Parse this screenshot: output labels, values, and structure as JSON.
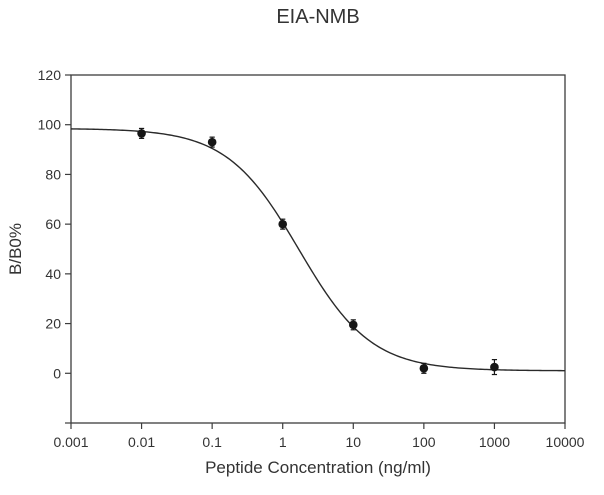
{
  "figure": {
    "background": "#ffffff",
    "text_color": "#333333",
    "axis_color": "#3c3c3c",
    "curve_color": "#2a2a2a",
    "marker_color": "#161616"
  },
  "chart_data": {
    "type": "scatter",
    "title": "EIA-NMB",
    "xlabel": "Peptide Concentration (ng/ml)",
    "ylabel": "B/B0%",
    "x_scale": "log",
    "xlim": [
      0.001,
      10000
    ],
    "ylim": [
      -20,
      120
    ],
    "x_ticks": [
      0.001,
      0.01,
      0.1,
      1,
      10,
      100,
      1000,
      10000
    ],
    "x_tick_labels": [
      "0.001",
      "0.01",
      "0.1",
      "1",
      "10",
      "100",
      "1000",
      "10000"
    ],
    "y_ticks": [
      0,
      20,
      40,
      60,
      80,
      100,
      120
    ],
    "y_tick_labels": [
      "0",
      "20",
      "40",
      "60",
      "80",
      "100",
      "120"
    ],
    "grid": false,
    "legend": null,
    "points": [
      {
        "x": 0.01,
        "y": 96.5,
        "err": 2
      },
      {
        "x": 0.1,
        "y": 93.0,
        "err": 2
      },
      {
        "x": 1,
        "y": 60.0,
        "err": 2
      },
      {
        "x": 10,
        "y": 19.5,
        "err": 2
      },
      {
        "x": 100,
        "y": 2.0,
        "err": 2
      },
      {
        "x": 1000,
        "y": 2.5,
        "err": 3
      }
    ],
    "fit_curve": {
      "model": "4PL",
      "bottom": 1.0,
      "top": 98.5,
      "ic50": 1.7,
      "hill": 0.85
    }
  }
}
